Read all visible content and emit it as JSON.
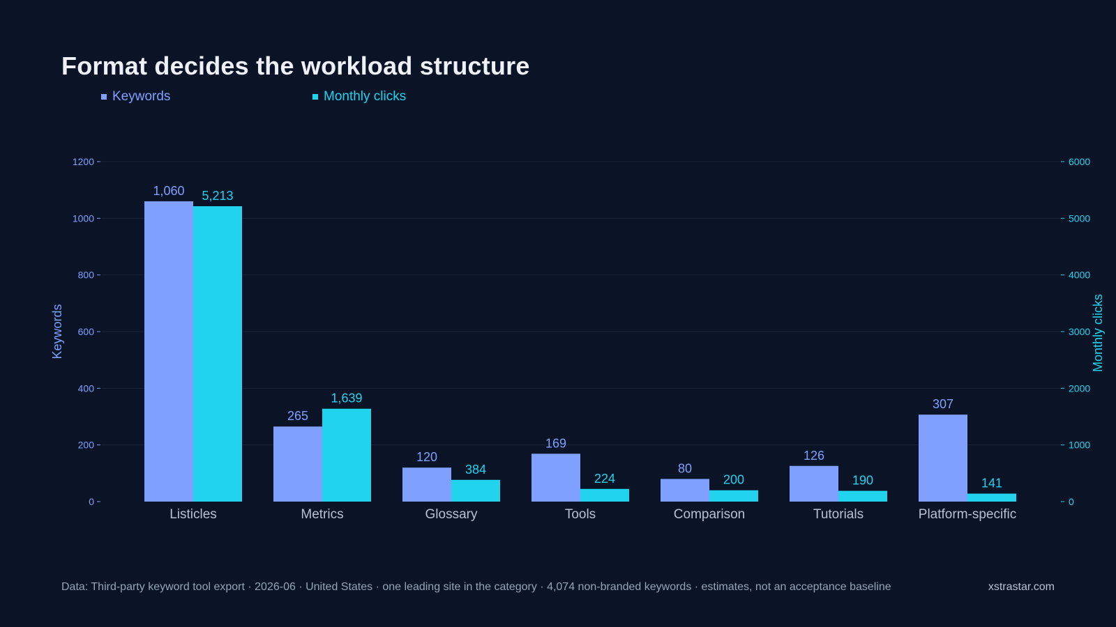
{
  "title": "Format decides the workload structure",
  "legend": [
    {
      "label": "Keywords",
      "color": "#7fa0ff"
    },
    {
      "label": "Monthly clicks",
      "color": "#22d3ee"
    }
  ],
  "footer": {
    "source": "Data: Third-party keyword tool export · 2026-06 · United States · one leading site in the category · 4,074 non-branded keywords · estimates, not an acceptance baseline",
    "brand": "xstrastar.com"
  },
  "colors": {
    "background": "#0b1426",
    "keywords": "#7fa0ff",
    "clicks": "#22d3ee",
    "category_label": "#b6c2d4",
    "grid": "#1a2539"
  },
  "chart_data": {
    "type": "bar",
    "categories": [
      "Listicles",
      "Metrics",
      "Glossary",
      "Tools",
      "Comparison",
      "Tutorials",
      "Platform-specific"
    ],
    "series": [
      {
        "name": "Keywords",
        "axis": "left",
        "values": [
          1060,
          265,
          120,
          169,
          80,
          126,
          307
        ],
        "labels": [
          "1,060",
          "265",
          "120",
          "169",
          "80",
          "126",
          "307"
        ]
      },
      {
        "name": "Monthly clicks",
        "axis": "right",
        "values": [
          5213,
          1639,
          384,
          224,
          200,
          190,
          141
        ],
        "labels": [
          "5,213",
          "1,639",
          "384",
          "224",
          "200",
          "190",
          "141"
        ]
      }
    ],
    "ylabel": "Keywords",
    "y2label": "Monthly clicks",
    "ylim": [
      0,
      1200
    ],
    "y2lim": [
      0,
      6000
    ],
    "yticks": [
      0,
      200,
      400,
      600,
      800,
      1000,
      1200
    ],
    "y2ticks": [
      0,
      1000,
      2000,
      3000,
      4000,
      5000,
      6000
    ],
    "grid": true,
    "legend_position": "top-left"
  }
}
